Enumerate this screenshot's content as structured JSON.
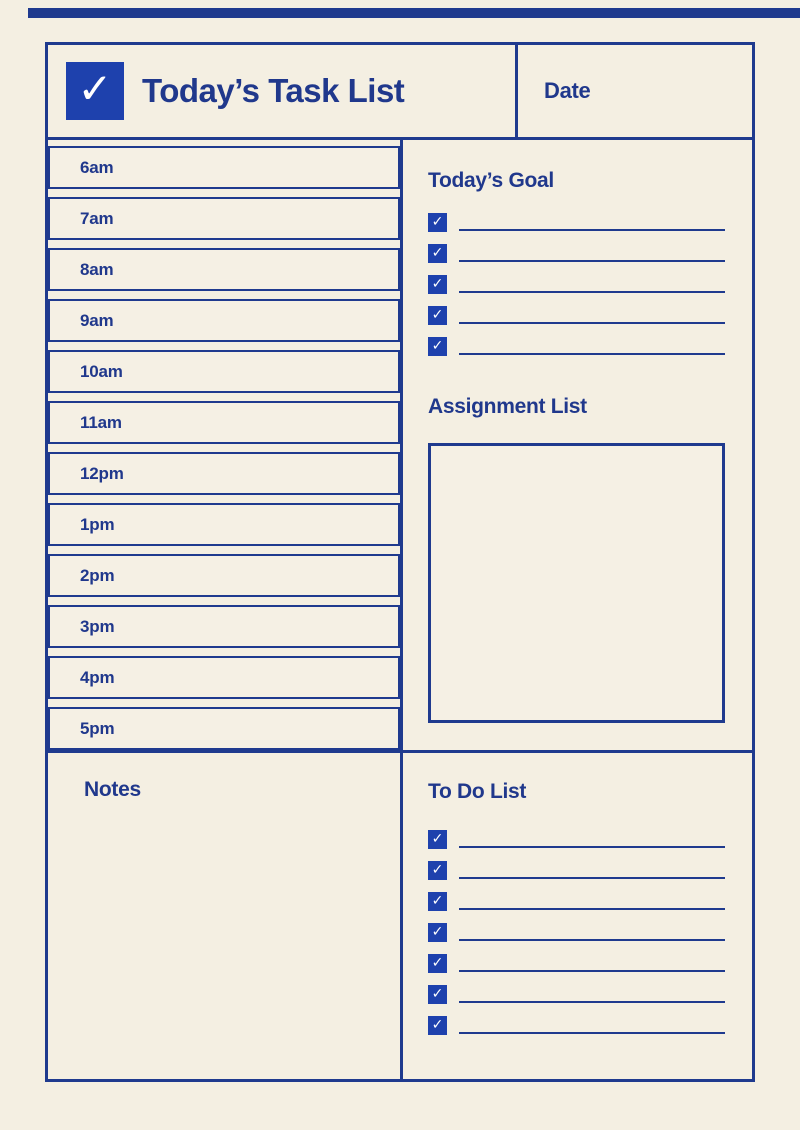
{
  "page": {
    "background": "#f4efe2",
    "navy": "#1f3a8e",
    "royal_blue": "#1e41ad",
    "check_glyph": "✓"
  },
  "header": {
    "title": "Today’s Task List",
    "date_label": "Date"
  },
  "schedule": {
    "times": [
      "6am",
      "7am",
      "8am",
      "9am",
      "10am",
      "11am",
      "12pm",
      "1pm",
      "2pm",
      "3pm",
      "4pm",
      "5pm"
    ]
  },
  "goals": {
    "heading": "Today’s Goal",
    "rows": [
      {
        "check": "✓",
        "text": ""
      },
      {
        "check": "✓",
        "text": ""
      },
      {
        "check": "✓",
        "text": ""
      },
      {
        "check": "✓",
        "text": ""
      },
      {
        "check": "✓",
        "text": ""
      }
    ]
  },
  "assignments": {
    "heading": "Assignment List"
  },
  "notes": {
    "heading": "Notes"
  },
  "todo": {
    "heading": "To Do List",
    "rows": [
      {
        "check": "✓",
        "text": ""
      },
      {
        "check": "✓",
        "text": ""
      },
      {
        "check": "✓",
        "text": ""
      },
      {
        "check": "✓",
        "text": ""
      },
      {
        "check": "✓",
        "text": ""
      },
      {
        "check": "✓",
        "text": ""
      },
      {
        "check": "✓",
        "text": ""
      }
    ]
  }
}
